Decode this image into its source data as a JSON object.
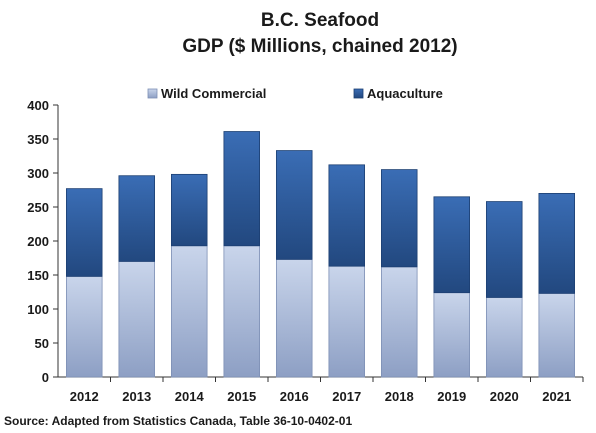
{
  "chart_data": {
    "type": "bar",
    "stacked": true,
    "title": "B.C. Seafood",
    "subtitle": "GDP ($ Millions, chained 2012)",
    "categories": [
      "2012",
      "2013",
      "2014",
      "2015",
      "2016",
      "2017",
      "2018",
      "2019",
      "2020",
      "2021"
    ],
    "series": [
      {
        "name": "Wild Commercial",
        "values": [
          148,
          170,
          193,
          193,
          173,
          163,
          162,
          124,
          117,
          123
        ]
      },
      {
        "name": "Aquaculture",
        "values": [
          129,
          126,
          105,
          168,
          160,
          149,
          143,
          141,
          141,
          147
        ]
      }
    ],
    "ylim": [
      0,
      400
    ],
    "yticks": [
      "0",
      "50",
      "100",
      "150",
      "200",
      "250",
      "300",
      "350",
      "400"
    ],
    "legend_position": "top",
    "grid": false,
    "colors": {
      "Wild Commercial": "#a9bad9",
      "Aquaculture": "#2c5a9e"
    },
    "source": "Source: Adapted from Statistics Canada, Table 36-10-0402-01"
  }
}
